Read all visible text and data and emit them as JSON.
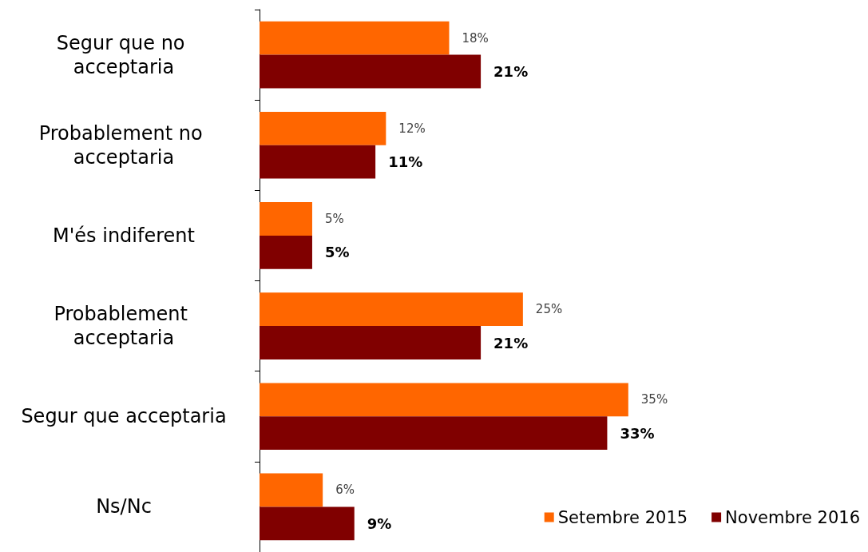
{
  "chart_data": {
    "type": "bar",
    "orientation": "horizontal",
    "categories": [
      "Segur que no acceptaria",
      "Probablement no acceptaria",
      "M'és indiferent",
      "Probablement acceptaria",
      "Segur que acceptaria",
      "Ns/Nc"
    ],
    "series": [
      {
        "name": "Setembre 2015",
        "color": "#ff6600",
        "values": [
          18,
          12,
          5,
          25,
          35,
          6
        ],
        "value_labels": [
          "18%",
          "12%",
          "5%",
          "25%",
          "35%",
          "6%"
        ]
      },
      {
        "name": "Novembre 2016",
        "color": "#800000",
        "values": [
          21,
          11,
          5,
          21,
          33,
          9
        ],
        "value_labels": [
          "21%",
          "11%",
          "5%",
          "21%",
          "33%",
          "9%"
        ]
      }
    ],
    "legend": "bottom right"
  }
}
